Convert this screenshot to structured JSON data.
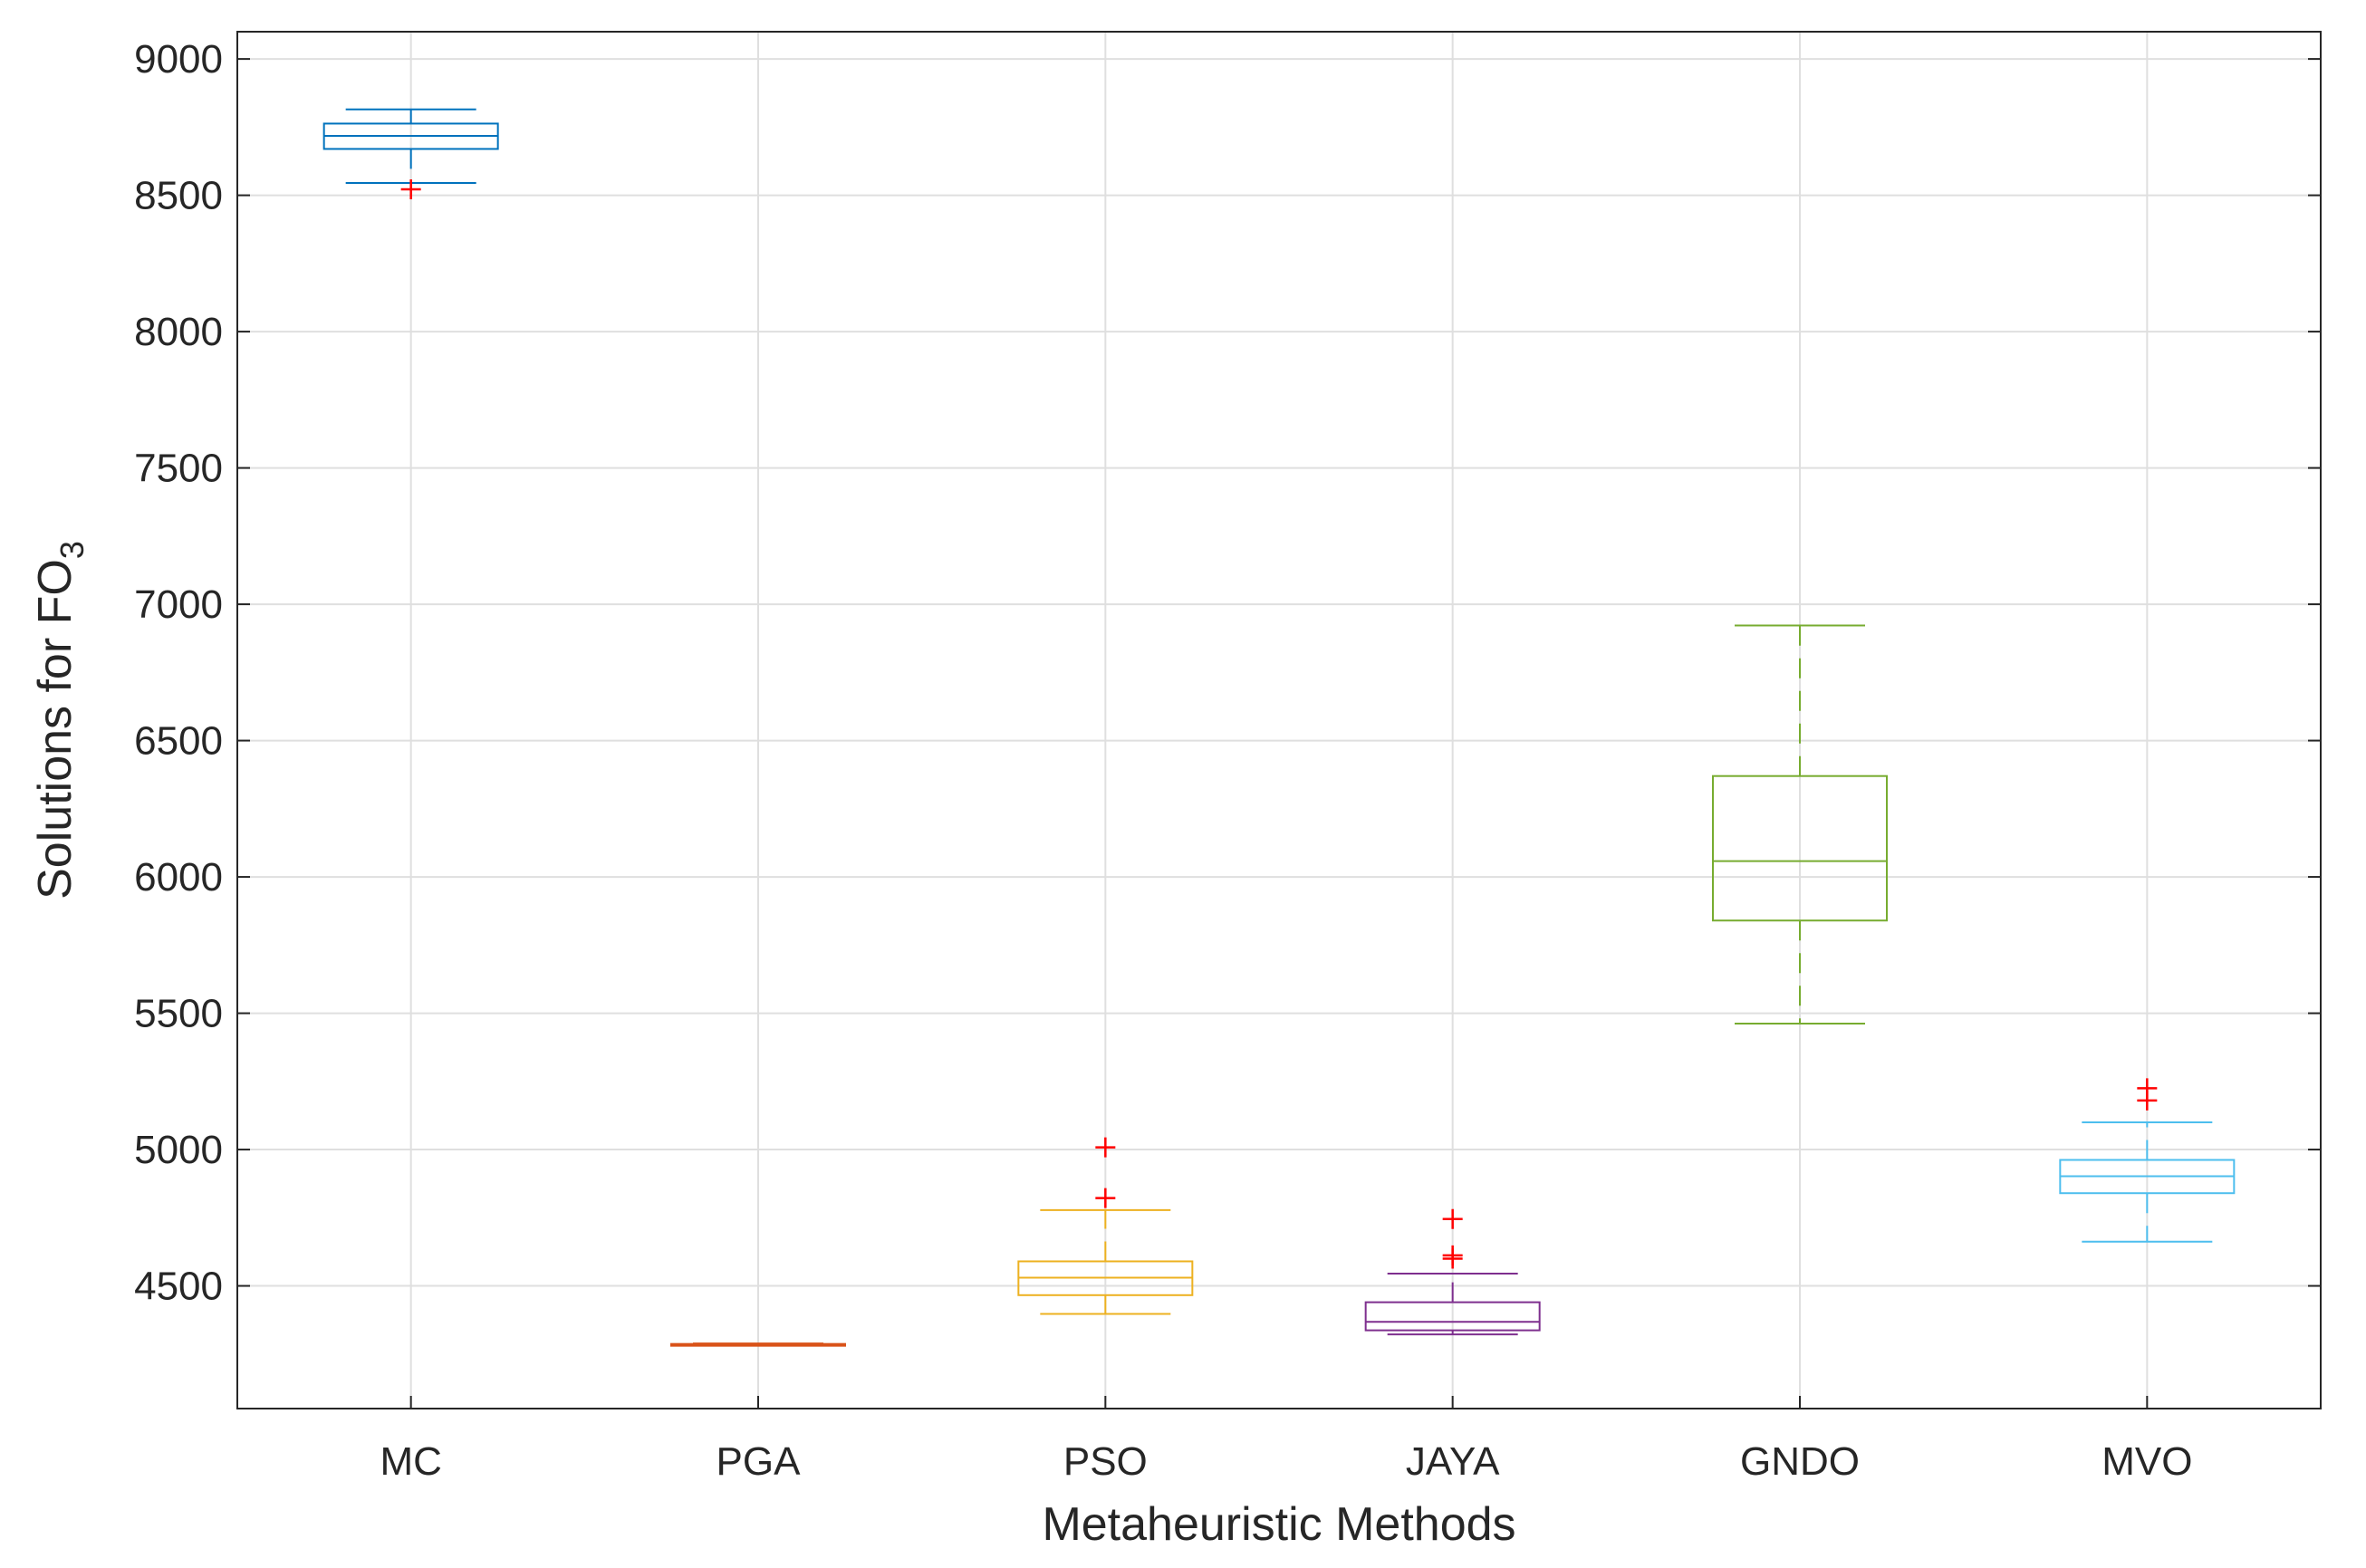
{
  "chart_data": {
    "type": "box",
    "xlabel": "Metaheuristic Methods",
    "ylabel_main": "Solutions for FO",
    "ylabel_sub": "3",
    "ylim": [
      4050,
      9100
    ],
    "yticks": [
      4500,
      5000,
      5500,
      6000,
      6500,
      7000,
      7500,
      8000,
      8500,
      9000
    ],
    "grid": true,
    "categories": [
      "MC",
      "PGA",
      "PSO",
      "JAYA",
      "GNDO",
      "MVO"
    ],
    "boxes": [
      {
        "name": "MC",
        "color": "#0072BD",
        "whisker_low": 8545,
        "q1": 8670,
        "median": 8718,
        "q3": 8763,
        "whisker_high": 8815,
        "outliers": [
          8522
        ]
      },
      {
        "name": "PGA",
        "color": "#D95319",
        "whisker_low": 4282,
        "q1": 4284,
        "median": 4285,
        "q3": 4287,
        "whisker_high": 4289,
        "outliers": []
      },
      {
        "name": "PSO",
        "color": "#EDB120",
        "whisker_low": 4397,
        "q1": 4466,
        "median": 4530,
        "q3": 4590,
        "whisker_high": 4778,
        "outliers": [
          4822,
          5008
        ]
      },
      {
        "name": "JAYA",
        "color": "#7E2F8E",
        "whisker_low": 4322,
        "q1": 4337,
        "median": 4368,
        "q3": 4440,
        "whisker_high": 4545,
        "outliers": [
          4600,
          4612,
          4745
        ]
      },
      {
        "name": "GNDO",
        "color": "#77AC30",
        "whisker_low": 5462,
        "q1": 5840,
        "median": 6058,
        "q3": 6370,
        "whisker_high": 6922,
        "outliers": []
      },
      {
        "name": "MVO",
        "color": "#4DBEEE",
        "whisker_low": 4662,
        "q1": 4840,
        "median": 4902,
        "q3": 4962,
        "whisker_high": 5100,
        "outliers": [
          5180,
          5225
        ]
      }
    ],
    "outlier_color": "#FF0000",
    "grid_color": "#DFDFDF",
    "axis_color": "#262626"
  }
}
